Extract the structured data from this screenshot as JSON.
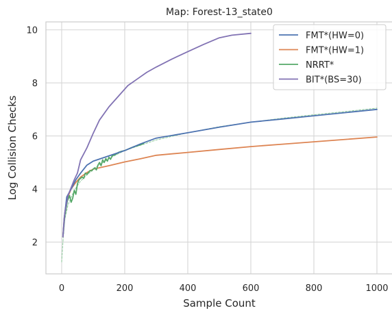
{
  "chart_data": {
    "type": "line",
    "title": "Map: Forest-13_state0",
    "xlabel": "Sample Count",
    "ylabel": "Log Collision Checks",
    "xlim": [
      -50,
      1050
    ],
    "ylim": [
      0.8,
      10.3
    ],
    "xticks": [
      0,
      200,
      400,
      600,
      800,
      1000
    ],
    "yticks": [
      2,
      4,
      6,
      8,
      10
    ],
    "grid": true,
    "legend_position": "top-right",
    "series": [
      {
        "name": "FMT*(HW=0)",
        "color": "#4c72b0",
        "style": "solid",
        "x": [
          4,
          8,
          16,
          30,
          45,
          60,
          80,
          100,
          150,
          200,
          250,
          300,
          400,
          500,
          600,
          700,
          800,
          900,
          1000
        ],
        "y": [
          2.2,
          2.9,
          3.7,
          4.0,
          4.35,
          4.6,
          4.9,
          5.05,
          5.25,
          5.45,
          5.7,
          5.92,
          6.12,
          6.33,
          6.52,
          6.64,
          6.76,
          6.88,
          7.0
        ]
      },
      {
        "name": "FMT*(HW=1)",
        "color": "#dd8452",
        "style": "solid",
        "x": [
          4,
          8,
          16,
          30,
          45,
          60,
          80,
          100,
          150,
          200,
          250,
          300,
          400,
          500,
          600,
          700,
          800,
          900,
          1000
        ],
        "y": [
          2.2,
          2.9,
          3.6,
          4.0,
          4.25,
          4.45,
          4.62,
          4.75,
          4.88,
          5.02,
          5.14,
          5.27,
          5.38,
          5.49,
          5.6,
          5.69,
          5.78,
          5.87,
          5.96
        ]
      },
      {
        "name": "NRRT*",
        "color": "#55a868",
        "style": "solid",
        "x": [
          5,
          10,
          18,
          25,
          30,
          35,
          40,
          45,
          50,
          55,
          60,
          65,
          70,
          75,
          80,
          85,
          90,
          95,
          100,
          105,
          110,
          115,
          120,
          125,
          130,
          135,
          140,
          145,
          150,
          155,
          160,
          170,
          180,
          190,
          200,
          210,
          220,
          230,
          240,
          250,
          260
        ],
        "y": [
          2.3,
          3.0,
          3.55,
          3.75,
          3.5,
          3.65,
          3.95,
          3.8,
          4.2,
          4.35,
          4.4,
          4.45,
          4.4,
          4.6,
          4.55,
          4.62,
          4.7,
          4.68,
          4.75,
          4.8,
          4.72,
          4.9,
          5.0,
          4.88,
          5.1,
          5.0,
          5.15,
          5.05,
          5.2,
          5.12,
          5.25,
          5.3,
          5.38,
          5.42,
          5.45,
          5.5,
          5.55,
          5.6,
          5.63,
          5.67,
          5.72
        ]
      },
      {
        "name": "BIT*(BS=30)",
        "color": "#8172b3",
        "style": "solid",
        "x": [
          4,
          10,
          20,
          30,
          40,
          50,
          60,
          80,
          100,
          120,
          150,
          180,
          210,
          240,
          270,
          300,
          350,
          400,
          450,
          500,
          540,
          600
        ],
        "y": [
          2.2,
          3.1,
          3.75,
          4.05,
          4.35,
          4.6,
          5.1,
          5.55,
          6.1,
          6.6,
          7.1,
          7.5,
          7.9,
          8.15,
          8.4,
          8.6,
          8.9,
          9.18,
          9.45,
          9.7,
          9.8,
          9.87
        ]
      },
      {
        "name": "",
        "color": "#8cc99a",
        "style": "dashed",
        "x": [
          0,
          5,
          10,
          20,
          40,
          60,
          100,
          150,
          200,
          300,
          400,
          500,
          600,
          700,
          800,
          900,
          1000
        ],
        "y": [
          1.25,
          2.2,
          2.85,
          3.4,
          3.95,
          4.3,
          4.75,
          5.15,
          5.45,
          5.85,
          6.12,
          6.35,
          6.52,
          6.67,
          6.8,
          6.92,
          7.05
        ]
      }
    ]
  }
}
